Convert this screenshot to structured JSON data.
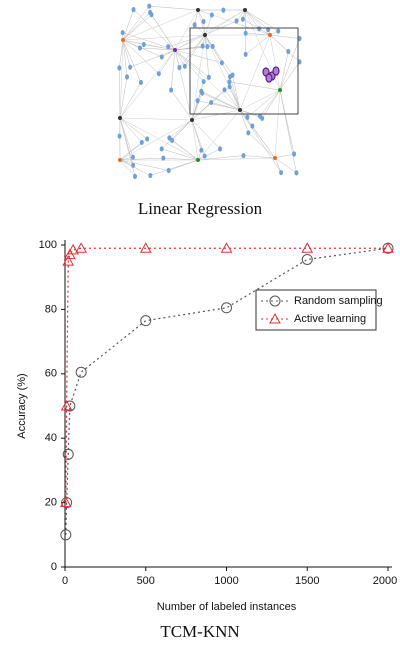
{
  "figure": {
    "top_caption": "Linear Regression"
  },
  "chart_data": {
    "type": "line",
    "caption": "TCM-KNN",
    "x_label": "Number of labeled instances",
    "y_label": "Accuracy (%)",
    "xlim": [
      0,
      2000
    ],
    "xticks": [
      0,
      500,
      1000,
      1500,
      2000
    ],
    "ylim": [
      0,
      100
    ],
    "yticks": [
      0,
      20,
      40,
      60,
      80,
      100
    ],
    "legend": "top-right",
    "series": [
      {
        "name": "Random sampling",
        "color": "#555555",
        "marker": "circle",
        "x": [
          5,
          10,
          20,
          30,
          100,
          500,
          1000,
          1500,
          2000
        ],
        "values": [
          10,
          20,
          35,
          50,
          60.5,
          76.5,
          80.5,
          95.5,
          99
        ]
      },
      {
        "name": "Active learning",
        "color": "#e03030",
        "marker": "triangle",
        "x": [
          5,
          10,
          20,
          30,
          50,
          100,
          500,
          1000,
          1500,
          2000
        ],
        "values": [
          20,
          50,
          95,
          97,
          98.5,
          99,
          99,
          99,
          99,
          99
        ]
      }
    ]
  }
}
